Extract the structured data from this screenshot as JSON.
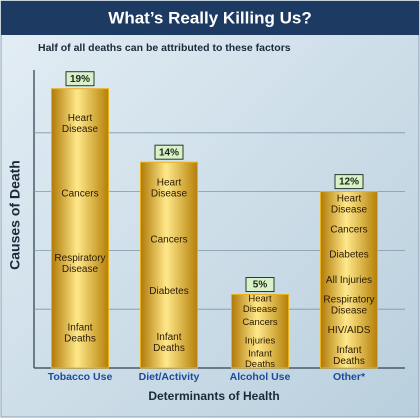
{
  "chart_data": {
    "type": "bar",
    "title": "What’s Really Killing Us?",
    "subtitle": "Half of all deaths can be attributed to these factors",
    "xlabel": "Determinants of Health",
    "ylabel": "Causes of Death",
    "categories": [
      "Tobacco Use",
      "Diet/Activity",
      "Alcohol Use",
      "Other*"
    ],
    "values": [
      19,
      14,
      5,
      12
    ],
    "value_labels": [
      "19%",
      "14%",
      "5%",
      "12%"
    ],
    "causes": [
      [
        "Heart\nDisease",
        "Cancers",
        "Respiratory\nDisease",
        "Infant\nDeaths"
      ],
      [
        "Heart\nDisease",
        "Cancers",
        "Diabetes",
        "Infant\nDeaths"
      ],
      [
        "Heart\nDisease",
        "Cancers",
        "Injuries",
        "Infant\nDeaths"
      ],
      [
        "Heart\nDisease",
        "Cancers",
        "Diabetes",
        "All Injuries",
        "Respiratory\nDisease",
        "HIV/AIDS",
        "Infant\nDeaths"
      ]
    ],
    "color": "#e8b21e",
    "ylim": [
      0,
      20
    ],
    "yticks": [
      4,
      8,
      12,
      16
    ],
    "grid": true
  }
}
